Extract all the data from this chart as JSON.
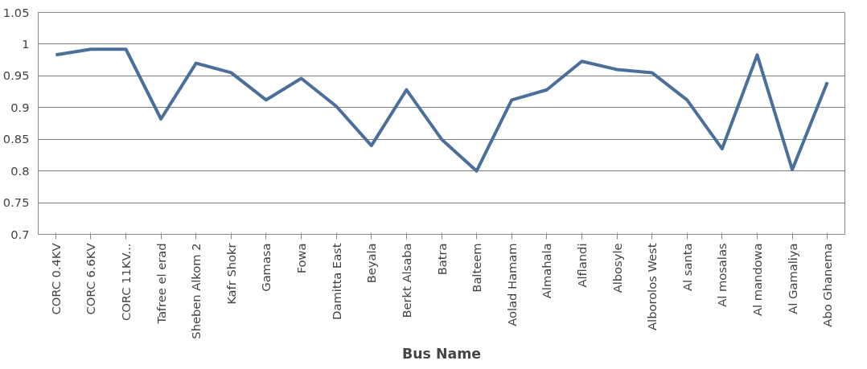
{
  "chart_data": {
    "type": "line",
    "xlabel": "Bus Name",
    "categories": [
      "CORC 0.4KV",
      "CORC 6.6KV",
      "CORC 11KV...",
      "Tafree el erad",
      "Sheben Alkom 2",
      "Kafr Shokr",
      "Gamasa",
      "Fowa",
      "Damitta East",
      "Beyala",
      "Berkt Alsaba",
      "Batra",
      "Balteem",
      "Aolad Hamam",
      "Almahala",
      "Alflandi",
      "Albosyle",
      "Alborolos West",
      "Al santa",
      "Al mosalas",
      "Al mandowa",
      "Al Gamaliya",
      "Abo Ghanema"
    ],
    "series": [
      {
        "color": "#4a6f9b",
        "values": [
          0.983,
          0.992,
          0.992,
          0.882,
          0.97,
          0.955,
          0.912,
          0.946,
          0.902,
          0.84,
          0.928,
          0.85,
          0.8,
          0.912,
          0.928,
          0.973,
          0.96,
          0.955,
          0.912,
          0.835,
          0.983,
          0.802,
          0.94
        ]
      }
    ],
    "ylim": [
      0.7,
      1.05
    ],
    "yticks": [
      {
        "value": 0.7,
        "label": "0.7"
      },
      {
        "value": 0.75,
        "label": "0.75"
      },
      {
        "value": 0.8,
        "label": "0.8"
      },
      {
        "value": 0.85,
        "label": "0.85"
      },
      {
        "value": 0.9,
        "label": "0.9"
      },
      {
        "value": 0.95,
        "label": "0.95"
      },
      {
        "value": 1,
        "label": "1"
      },
      {
        "value": 1.05,
        "label": "1.05"
      }
    ],
    "grid": "y",
    "marker": "none",
    "line_style": "solid"
  }
}
